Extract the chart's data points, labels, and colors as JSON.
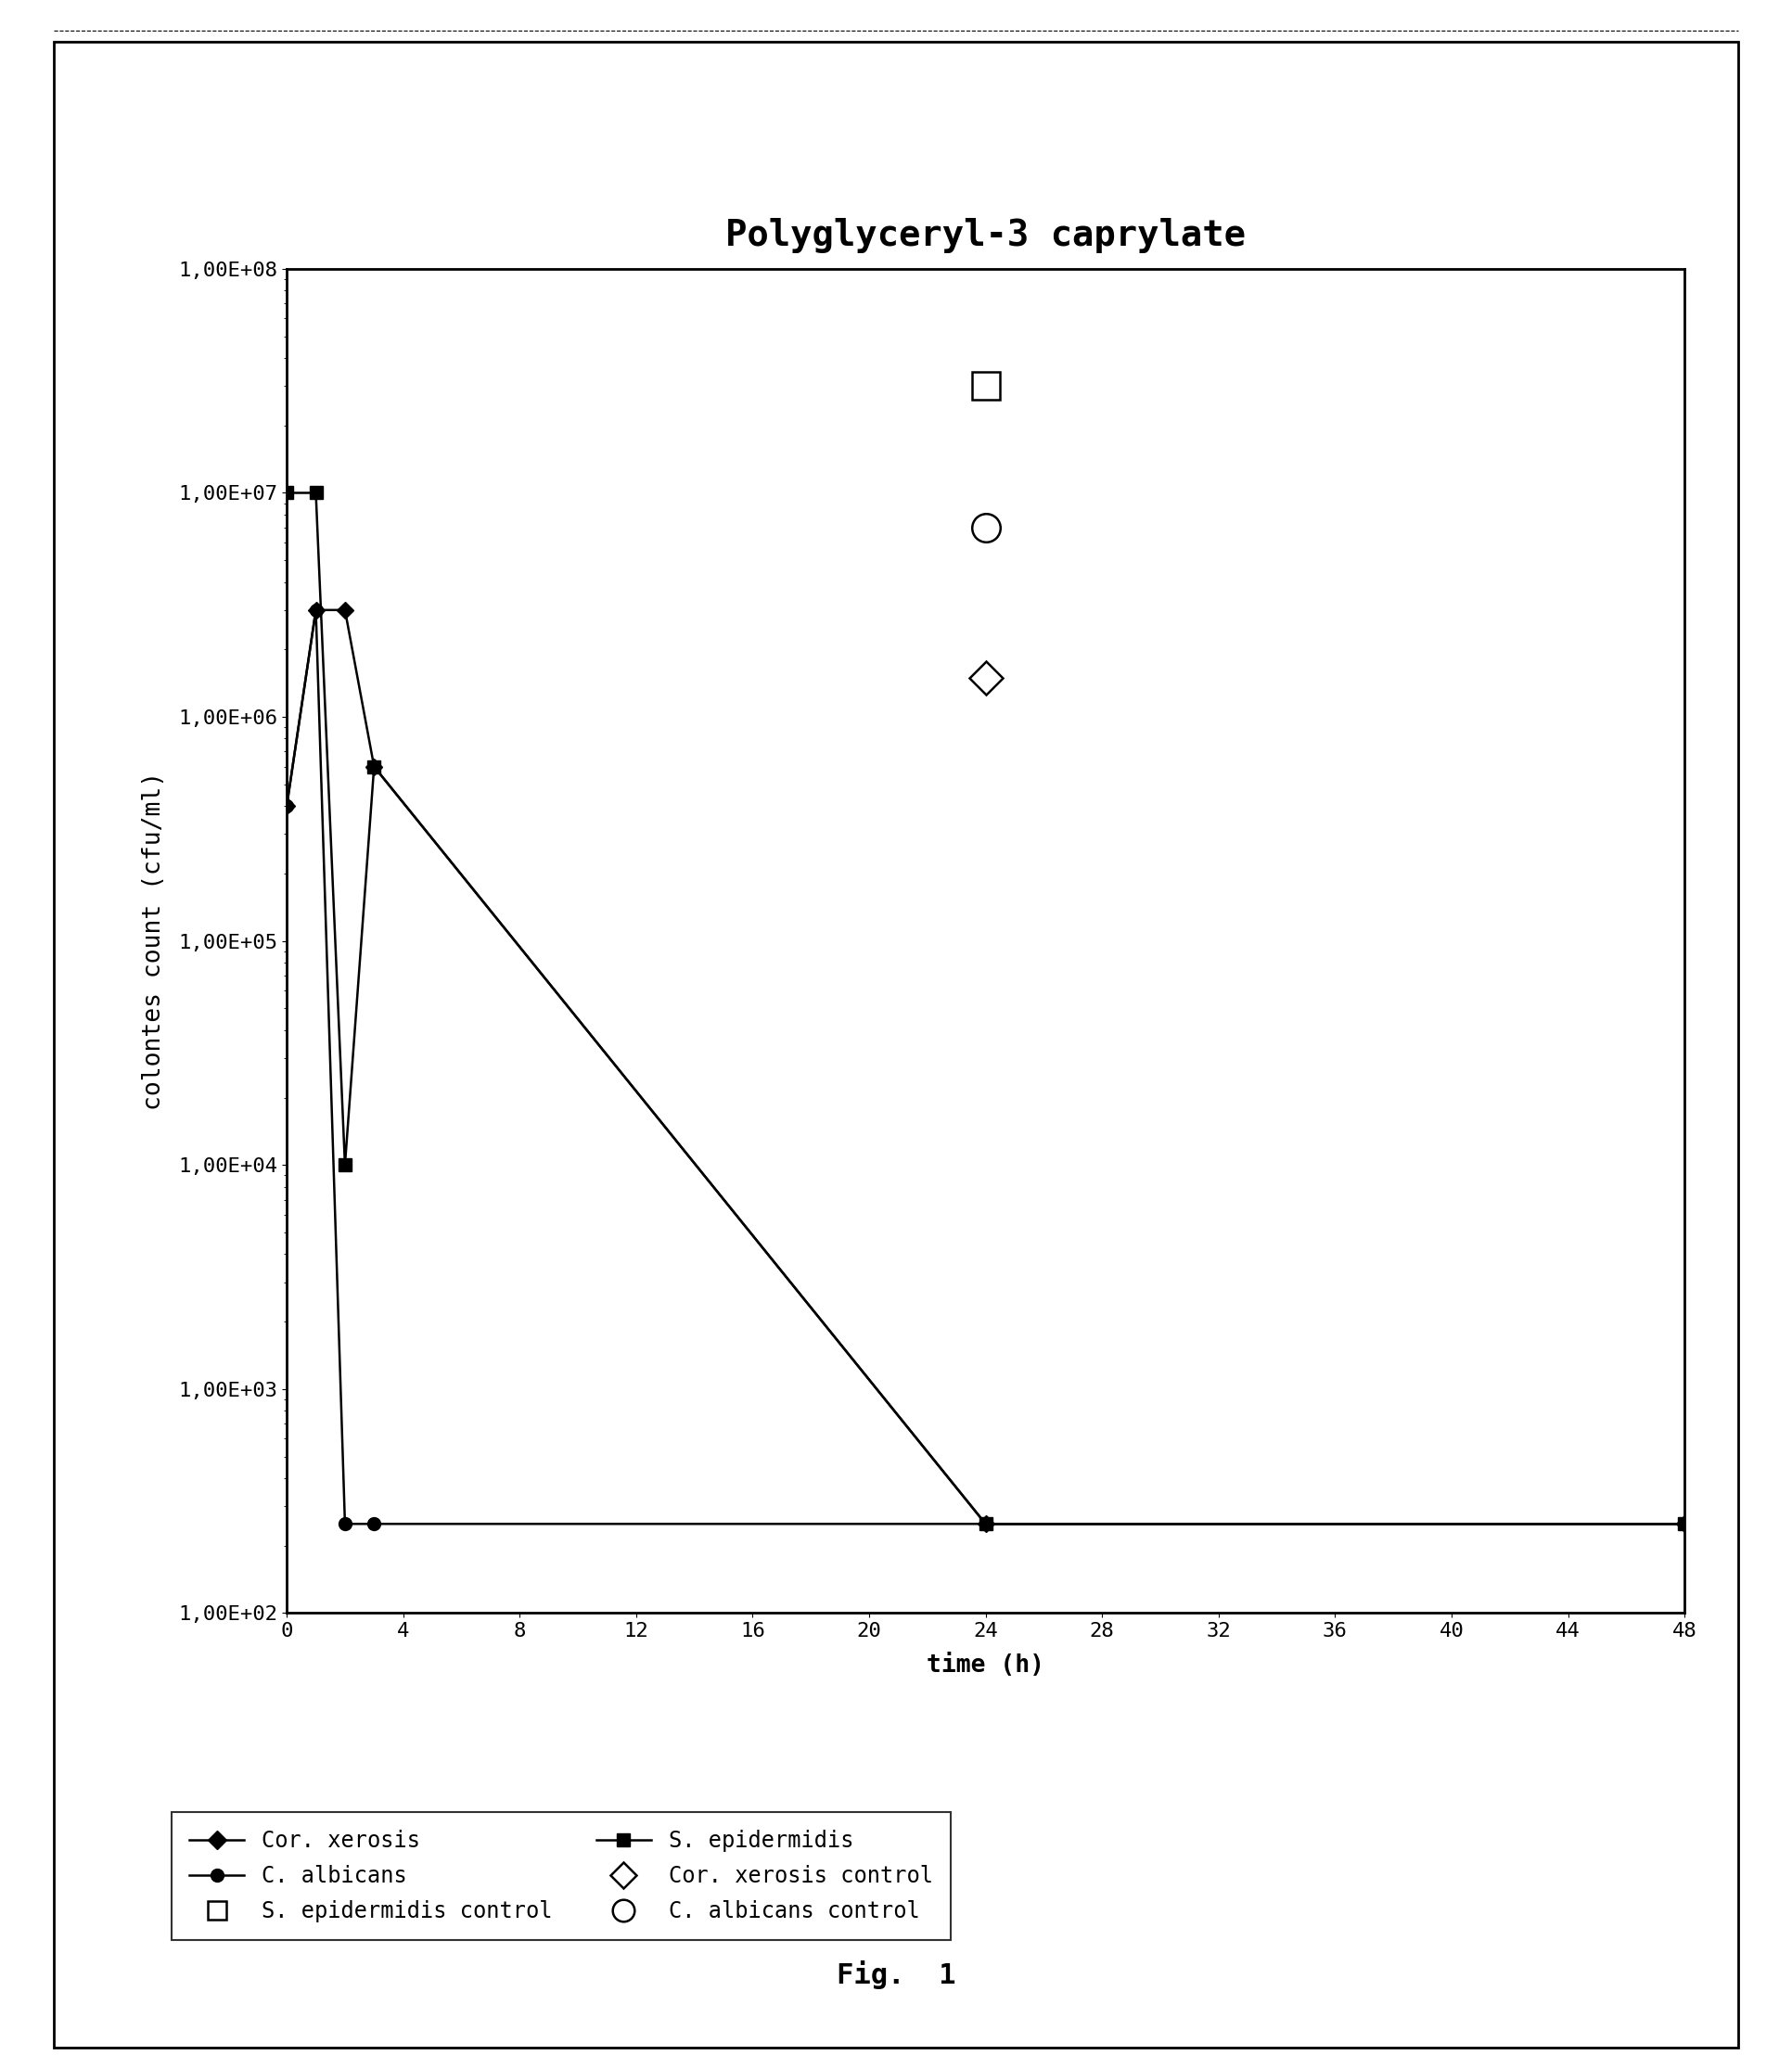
{
  "title": "Polyglyceryl-3 caprylate",
  "xlabel": "time (h)",
  "ylabel": "colontes count (cfu/ml)",
  "fig_caption": "Fig.  1",
  "ylim_log_min": 2,
  "ylim_log_max": 8,
  "xlim": [
    0,
    48
  ],
  "xticks": [
    0,
    4,
    8,
    12,
    16,
    20,
    24,
    28,
    32,
    36,
    40,
    44,
    48
  ],
  "ytick_labels": [
    "1,00E+02",
    "1,00E+03",
    "1,00E+04",
    "1,00E+05",
    "1,00E+06",
    "1,00E+07",
    "1,00E+08"
  ],
  "ytick_values": [
    100,
    1000,
    10000,
    100000,
    1000000,
    10000000,
    100000000
  ],
  "cor_xerosis_x": [
    0,
    1,
    2,
    3,
    24,
    48
  ],
  "cor_xerosis_y": [
    400000.0,
    3000000.0,
    3000000.0,
    600000.0,
    250.0,
    250.0
  ],
  "s_epidermidis_x": [
    0,
    1,
    2,
    3,
    24,
    48
  ],
  "s_epidermidis_y": [
    10000000.0,
    10000000.0,
    10000.0,
    600000.0,
    250.0,
    250.0
  ],
  "c_albicans_x": [
    0,
    1,
    2,
    3,
    24,
    48
  ],
  "c_albicans_y": [
    400000.0,
    3000000.0,
    250.0,
    250.0,
    250.0,
    250.0
  ],
  "cor_xerosis_control_x": [
    24
  ],
  "cor_xerosis_control_y": [
    1500000.0
  ],
  "s_epidermidis_control_x": [
    24
  ],
  "s_epidermidis_control_y": [
    30000000.0
  ],
  "c_albicans_control_x": [
    24
  ],
  "c_albicans_control_y": [
    7000000.0
  ],
  "line_color": "#000000",
  "background_color": "#ffffff",
  "title_fontsize": 28,
  "axis_label_fontsize": 19,
  "tick_fontsize": 16,
  "legend_fontsize": 17,
  "caption_fontsize": 22
}
